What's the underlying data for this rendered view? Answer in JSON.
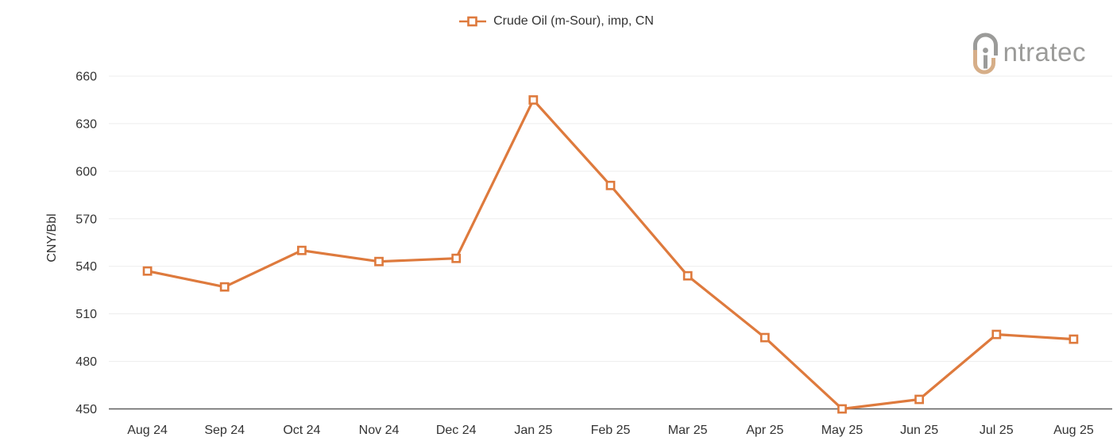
{
  "page": {
    "background": "#ffffff"
  },
  "legend": {
    "items": [
      {
        "label": "Crude Oil (m-Sour), imp, CN",
        "color": "#de7a3d",
        "marker": "open-square"
      }
    ]
  },
  "logo": {
    "text": "ntratec",
    "gray": "#9b9b99",
    "tan": "#d6ae88"
  },
  "chart_data": {
    "type": "line",
    "title": "",
    "xlabel": "",
    "ylabel": "CNY/Bbl",
    "categories": [
      "Aug 24",
      "Sep 24",
      "Oct 24",
      "Nov 24",
      "Dec 24",
      "Jan 25",
      "Feb 25",
      "Mar 25",
      "Apr 25",
      "May 25",
      "Jun 25",
      "Jul 25",
      "Aug 25"
    ],
    "series": [
      {
        "name": "Crude Oil (m-Sour), imp, CN",
        "color": "#de7a3d",
        "marker": "open-square",
        "values": [
          537,
          527,
          550,
          543,
          545,
          645,
          591,
          534,
          495,
          450,
          456,
          497,
          494
        ]
      }
    ],
    "ylim": [
      450,
      672
    ],
    "yticks": [
      450,
      480,
      510,
      540,
      570,
      600,
      630,
      660
    ],
    "grid": "horizontal",
    "legend_position": "top-center",
    "colors": {
      "grid": "#ededed",
      "axis": "#5f5f5f",
      "tick_text": "#333333"
    }
  }
}
